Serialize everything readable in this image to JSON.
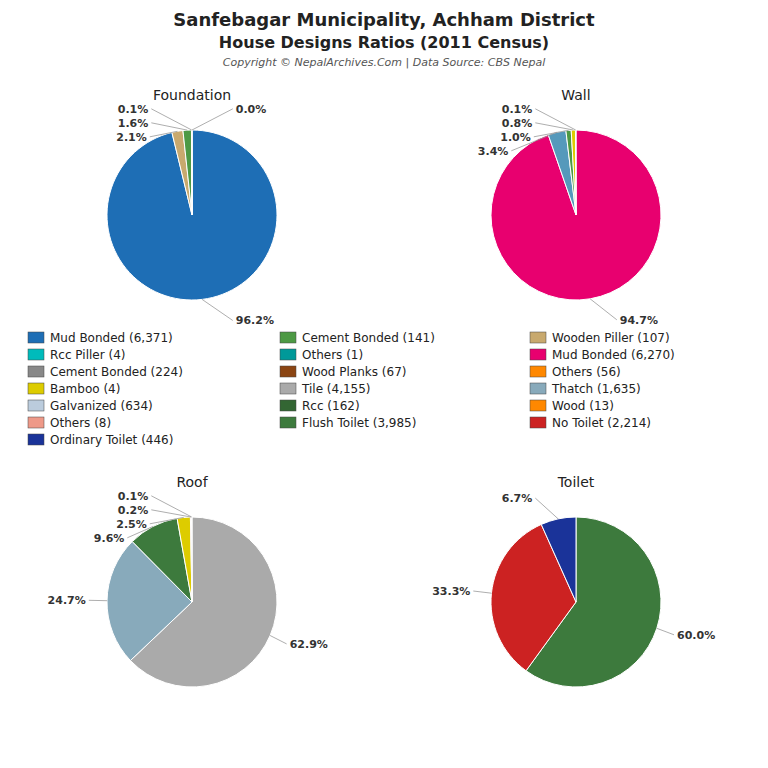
{
  "title": "Sanfebagar Municipality, Achham District",
  "subtitle": "House Designs Ratios (2011 Census)",
  "annotations": [
    "Copyright © NepalArchives.Com | Data Source: CBS Nepal"
  ],
  "legend_columns": [
    [
      {
        "name": "Mud Bonded (6,371)",
        "color": "#1e6eb5"
      },
      {
        "name": "Rcc Piller (4)",
        "color": "#00bbbb"
      },
      {
        "name": "Cement Bonded (224)",
        "color": "#888888"
      },
      {
        "name": "Bamboo (4)",
        "color": "#ddcc00"
      },
      {
        "name": "Galvanized (634)",
        "color": "#bbccdd"
      },
      {
        "name": "Others (8)",
        "color": "#ee9988"
      },
      {
        "name": "Ordinary Toilet (446)",
        "color": "#1a3399"
      }
    ],
    [
      {
        "name": "Cement Bonded (141)",
        "color": "#4d9944"
      },
      {
        "name": "Others (1)",
        "color": "#009999"
      },
      {
        "name": "Wood Planks (67)",
        "color": "#8b4513"
      },
      {
        "name": "Tile (4,155)",
        "color": "#aaaaaa"
      },
      {
        "name": "Rcc (162)",
        "color": "#336633"
      },
      {
        "name": "Flush Toilet (3,985)",
        "color": "#3d7a3d"
      }
    ],
    [
      {
        "name": "Wooden Piller (107)",
        "color": "#c8a96e"
      },
      {
        "name": "Mud Bonded (6,270)",
        "color": "#e8006f"
      },
      {
        "name": "Others (56)",
        "color": "#ff8800"
      },
      {
        "name": "Thatch (1,635)",
        "color": "#88aabb"
      },
      {
        "name": "Wood (13)",
        "color": "#ff8800"
      },
      {
        "name": "No Toilet (2,214)",
        "color": "#cc2222"
      }
    ]
  ],
  "chart_data": [
    {
      "type": "pie",
      "title": "Foundation",
      "values": [
        96.2,
        2.1,
        1.6,
        0.1,
        0.0
      ],
      "value_labels": [
        "96.2%",
        "2.1%",
        "1.6%",
        "0.1%",
        "0.0%"
      ],
      "colors": [
        "#1e6eb5",
        "#c8a96e",
        "#4d9944",
        "#00bbbb",
        "#ddcc00"
      ],
      "data_labels": true
    },
    {
      "type": "pie",
      "title": "Wall",
      "values": [
        94.7,
        3.4,
        1.0,
        0.8,
        0.1
      ],
      "value_labels": [
        "94.7%",
        "3.4%",
        "1.0%",
        "0.8%",
        "0.1%"
      ],
      "colors": [
        "#e8006f",
        "#5599bb",
        "#4d9944",
        "#ddcc00",
        "#c8a96e"
      ],
      "data_labels": true
    },
    {
      "type": "pie",
      "title": "Roof",
      "values": [
        62.9,
        24.7,
        9.6,
        2.5,
        0.2,
        0.1
      ],
      "value_labels": [
        "62.9%",
        "24.7%",
        "9.6%",
        "2.5%",
        "0.2%",
        "0.1%"
      ],
      "colors": [
        "#aaaaaa",
        "#88aabb",
        "#3d7a3d",
        "#ddcc00",
        "#cc6633",
        "#1a3399"
      ],
      "data_labels": true
    },
    {
      "type": "pie",
      "title": "Toilet",
      "values": [
        60.0,
        33.3,
        6.7
      ],
      "value_labels": [
        "60.0%",
        "33.3%",
        "6.7%"
      ],
      "colors": [
        "#3d7a3d",
        "#cc2222",
        "#1a3399"
      ],
      "data_labels": true
    }
  ]
}
